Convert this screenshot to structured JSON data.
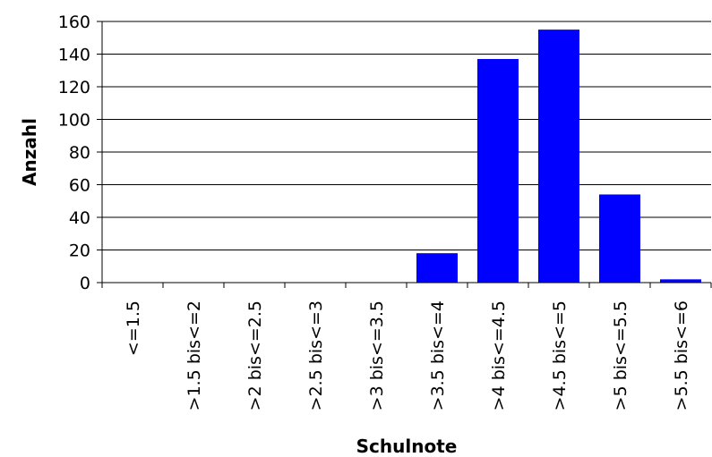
{
  "chart_data": {
    "type": "bar",
    "title": "",
    "xlabel": "Schulnote",
    "ylabel": "Anzahl",
    "categories": [
      "<=1.5",
      ">1.5 bis<=2",
      ">2 bis<=2.5",
      ">2.5 bis<=3",
      ">3 bis<=3.5",
      ">3.5 bis<=4",
      ">4 bis<=4.5",
      ">4.5 bis<=5",
      ">5 bis<=5.5",
      ">5.5 bis<=6"
    ],
    "values": [
      0,
      0,
      0,
      0,
      0,
      18,
      137,
      155,
      54,
      2
    ],
    "ylim": [
      0,
      160
    ],
    "yticks": [
      0,
      20,
      40,
      60,
      80,
      100,
      120,
      140,
      160
    ],
    "grid": true,
    "legend": "none",
    "bar_color": "#0000FF"
  }
}
